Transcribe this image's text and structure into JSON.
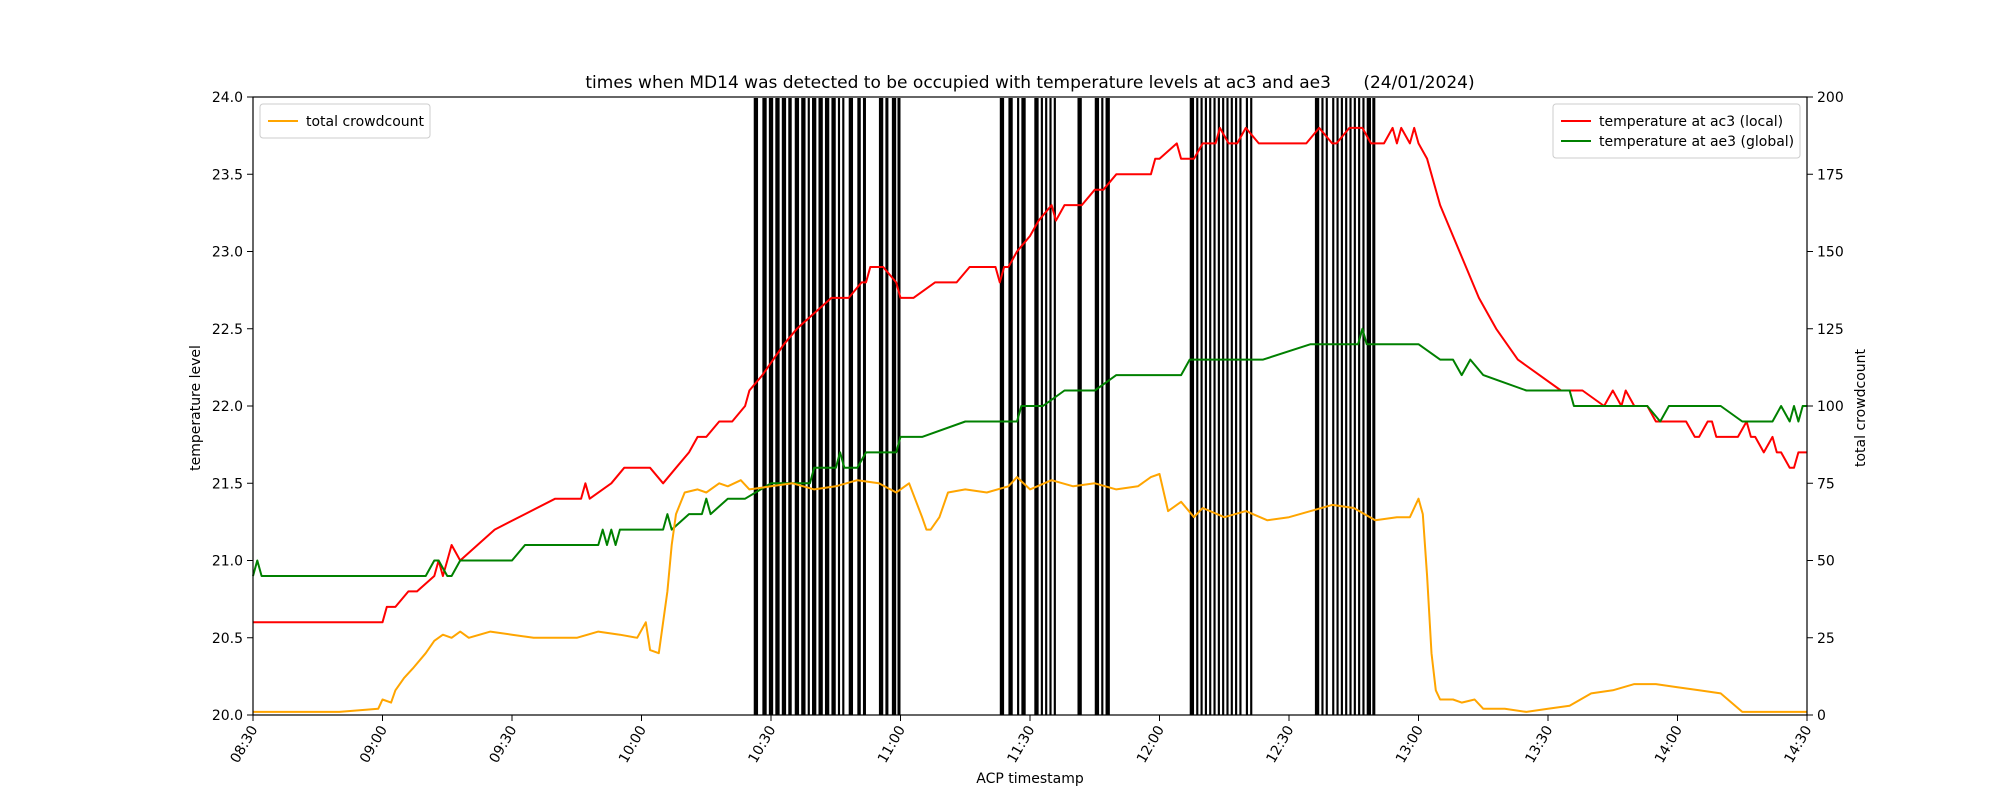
{
  "chart_data": {
    "type": "line",
    "title": "times when MD14 was detected to be occupied with temperature levels at ac3 and ae3      (24/01/2024)",
    "xlabel": "ACP timestamp",
    "ylabel": "temperature level",
    "ylabel_right": "total crowdcount",
    "xlim": [
      "08:30",
      "14:30"
    ],
    "ylim": [
      20.0,
      24.0
    ],
    "ylim_right": [
      0,
      200
    ],
    "x_ticks": [
      "08:30",
      "09:00",
      "09:30",
      "10:00",
      "10:30",
      "11:00",
      "11:30",
      "12:00",
      "12:30",
      "13:00",
      "13:30",
      "14:00",
      "14:30"
    ],
    "y_ticks": [
      "20.0",
      "20.5",
      "21.0",
      "21.5",
      "22.0",
      "22.5",
      "23.0",
      "23.5",
      "24.0"
    ],
    "y_ticks_right": [
      "0",
      "25",
      "50",
      "75",
      "100",
      "125",
      "150",
      "175",
      "200"
    ],
    "grid": false,
    "legend_left": {
      "placement": "upper-left",
      "entries": [
        "total crowdcount"
      ]
    },
    "legend_right": {
      "placement": "upper-right",
      "entries": [
        "temperature at ac3 (local)",
        "temperature at ae3 (global)"
      ]
    },
    "series": [
      {
        "name": "temperature at ac3 (local)",
        "color": "#ff0000",
        "axis": "left",
        "x": [
          "08:30",
          "09:00",
          "09:01",
          "09:03",
          "09:06",
          "09:08",
          "09:12",
          "09:13",
          "09:14",
          "09:15",
          "09:16",
          "09:18",
          "09:22",
          "09:26",
          "09:33",
          "09:40",
          "09:46",
          "09:47",
          "09:48",
          "09:53",
          "09:56",
          "10:02",
          "10:05",
          "10:08",
          "10:11",
          "10:13",
          "10:15",
          "10:18",
          "10:21",
          "10:24",
          "10:25",
          "10:28",
          "10:33",
          "10:36",
          "10:40",
          "10:44",
          "10:48",
          "10:51",
          "10:52",
          "10:53",
          "10:56",
          "10:59",
          "11:00",
          "11:01",
          "11:03",
          "11:08",
          "11:13",
          "11:16",
          "11:22",
          "11:23",
          "11:24",
          "11:25",
          "11:27",
          "11:30",
          "11:32",
          "11:35",
          "11:36",
          "11:38",
          "11:42",
          "11:45",
          "11:47",
          "11:50",
          "11:51",
          "11:55",
          "11:57",
          "11:58",
          "11:59",
          "12:00",
          "12:04",
          "12:05",
          "12:08",
          "12:10",
          "12:13",
          "12:14",
          "12:16",
          "12:18",
          "12:20",
          "12:23",
          "12:25",
          "12:27",
          "12:30",
          "12:31",
          "12:34",
          "12:37",
          "12:40",
          "12:41",
          "12:44",
          "12:47",
          "12:49",
          "12:52",
          "12:54",
          "12:55",
          "12:56",
          "12:58",
          "12:59",
          "13:00",
          "13:02",
          "13:05",
          "13:08",
          "13:11",
          "13:14",
          "13:18",
          "13:23",
          "13:28",
          "13:33",
          "13:38",
          "13:43",
          "13:45",
          "13:47",
          "13:48",
          "13:50",
          "13:53",
          "13:55",
          "13:57",
          "13:59",
          "14:00",
          "14:02",
          "14:04",
          "14:05",
          "14:07",
          "14:08",
          "14:09",
          "14:12",
          "14:14",
          "14:16",
          "14:17",
          "14:18",
          "14:20",
          "14:22",
          "14:23",
          "14:24",
          "14:26",
          "14:27",
          "14:28",
          "14:30"
        ],
        "y": [
          20.6,
          20.6,
          20.7,
          20.7,
          20.8,
          20.8,
          20.9,
          21.0,
          20.9,
          21.0,
          21.1,
          21.0,
          21.1,
          21.2,
          21.3,
          21.4,
          21.4,
          21.5,
          21.4,
          21.5,
          21.6,
          21.6,
          21.5,
          21.6,
          21.7,
          21.8,
          21.8,
          21.9,
          21.9,
          22.0,
          22.1,
          22.2,
          22.4,
          22.5,
          22.6,
          22.7,
          22.7,
          22.8,
          22.8,
          22.9,
          22.9,
          22.8,
          22.7,
          22.7,
          22.7,
          22.8,
          22.8,
          22.9,
          22.9,
          22.8,
          22.9,
          22.9,
          23.0,
          23.1,
          23.2,
          23.3,
          23.2,
          23.3,
          23.3,
          23.4,
          23.4,
          23.5,
          23.5,
          23.5,
          23.5,
          23.5,
          23.6,
          23.6,
          23.7,
          23.6,
          23.6,
          23.7,
          23.7,
          23.8,
          23.7,
          23.7,
          23.8,
          23.7,
          23.7,
          23.7,
          23.7,
          23.7,
          23.7,
          23.8,
          23.7,
          23.7,
          23.8,
          23.8,
          23.7,
          23.7,
          23.8,
          23.7,
          23.8,
          23.7,
          23.8,
          23.7,
          23.6,
          23.3,
          23.1,
          22.9,
          22.7,
          22.5,
          22.3,
          22.2,
          22.1,
          22.1,
          22.0,
          22.1,
          22.0,
          22.1,
          22.0,
          22.0,
          21.9,
          21.9,
          21.9,
          21.9,
          21.9,
          21.8,
          21.8,
          21.9,
          21.9,
          21.8,
          21.8,
          21.8,
          21.9,
          21.8,
          21.8,
          21.7,
          21.8,
          21.7,
          21.7,
          21.6,
          21.6,
          21.7,
          21.7
        ]
      },
      {
        "name": "temperature at ae3 (global)",
        "color": "#008000",
        "axis": "left",
        "x": [
          "08:30",
          "08:31",
          "08:32",
          "09:10",
          "09:12",
          "09:13",
          "09:15",
          "09:16",
          "09:18",
          "09:20",
          "09:22",
          "09:30",
          "09:33",
          "09:36",
          "09:37",
          "09:40",
          "09:50",
          "09:51",
          "09:52",
          "09:53",
          "09:54",
          "09:55",
          "09:57",
          "10:05",
          "10:06",
          "10:07",
          "10:11",
          "10:13",
          "10:14",
          "10:15",
          "10:16",
          "10:20",
          "10:24",
          "10:30",
          "10:31",
          "10:39",
          "10:40",
          "10:45",
          "10:46",
          "10:47",
          "10:50",
          "10:52",
          "10:53",
          "10:55",
          "10:58",
          "10:59",
          "11:00",
          "11:05",
          "11:15",
          "11:16",
          "11:17",
          "11:27",
          "11:28",
          "11:29",
          "11:30",
          "11:33",
          "11:38",
          "11:45",
          "11:50",
          "11:52",
          "12:00",
          "12:05",
          "12:07",
          "12:08",
          "12:10",
          "12:15",
          "12:24",
          "12:35",
          "12:36",
          "12:38",
          "12:40",
          "12:46",
          "12:47",
          "12:48",
          "13:00",
          "13:05",
          "13:08",
          "13:10",
          "13:12",
          "13:15",
          "13:25",
          "13:30",
          "13:35",
          "13:36",
          "13:38",
          "13:42",
          "13:44",
          "13:50",
          "13:53",
          "13:56",
          "13:58",
          "14:00",
          "14:02",
          "14:05",
          "14:10",
          "14:15",
          "14:22",
          "14:24",
          "14:26",
          "14:27",
          "14:28",
          "14:29",
          "14:30"
        ],
        "y": [
          20.9,
          21.0,
          20.9,
          20.9,
          21.0,
          21.0,
          20.9,
          20.9,
          21.0,
          21.0,
          21.0,
          21.0,
          21.1,
          21.1,
          21.1,
          21.1,
          21.1,
          21.2,
          21.1,
          21.2,
          21.1,
          21.2,
          21.2,
          21.2,
          21.3,
          21.2,
          21.3,
          21.3,
          21.3,
          21.4,
          21.3,
          21.4,
          21.4,
          21.5,
          21.5,
          21.5,
          21.6,
          21.6,
          21.7,
          21.6,
          21.6,
          21.7,
          21.7,
          21.7,
          21.7,
          21.7,
          21.8,
          21.8,
          21.9,
          21.9,
          21.9,
          21.9,
          22.0,
          22.0,
          22.0,
          22.0,
          22.1,
          22.1,
          22.2,
          22.2,
          22.2,
          22.2,
          22.3,
          22.3,
          22.3,
          22.3,
          22.3,
          22.4,
          22.4,
          22.4,
          22.4,
          22.4,
          22.5,
          22.4,
          22.4,
          22.3,
          22.3,
          22.2,
          22.3,
          22.2,
          22.1,
          22.1,
          22.1,
          22.0,
          22.0,
          22.0,
          22.0,
          22.0,
          22.0,
          21.9,
          22.0,
          22.0,
          22.0,
          22.0,
          22.0,
          21.9,
          21.9,
          22.0,
          21.9,
          22.0,
          21.9,
          22.0,
          22.0
        ]
      },
      {
        "name": "total crowdcount",
        "color": "#ffa500",
        "axis": "right",
        "x": [
          "08:30",
          "08:50",
          "08:59",
          "09:00",
          "09:02",
          "09:03",
          "09:05",
          "09:07",
          "09:10",
          "09:12",
          "09:14",
          "09:16",
          "09:18",
          "09:20",
          "09:25",
          "09:30",
          "09:35",
          "09:40",
          "09:45",
          "09:50",
          "09:55",
          "09:59",
          "10:01",
          "10:02",
          "10:04",
          "10:06",
          "10:07",
          "10:08",
          "10:10",
          "10:13",
          "10:15",
          "10:18",
          "10:20",
          "10:23",
          "10:25",
          "10:30",
          "10:35",
          "10:40",
          "10:45",
          "10:50",
          "10:55",
          "10:59",
          "11:02",
          "11:05",
          "11:06",
          "11:07",
          "11:09",
          "11:11",
          "11:15",
          "11:20",
          "11:25",
          "11:27",
          "11:30",
          "11:35",
          "11:40",
          "11:45",
          "11:50",
          "11:55",
          "11:58",
          "12:00",
          "12:02",
          "12:05",
          "12:08",
          "12:10",
          "12:15",
          "12:20",
          "12:25",
          "12:30",
          "12:35",
          "12:40",
          "12:45",
          "12:50",
          "12:55",
          "12:58",
          "13:00",
          "13:01",
          "13:02",
          "13:03",
          "13:04",
          "13:05",
          "13:08",
          "13:10",
          "13:13",
          "13:15",
          "13:20",
          "13:25",
          "13:30",
          "13:35",
          "13:40",
          "13:45",
          "13:50",
          "13:55",
          "14:00",
          "14:05",
          "14:10",
          "14:15",
          "14:20",
          "14:25",
          "14:30"
        ],
        "y": [
          1,
          1,
          2,
          5,
          4,
          8,
          12,
          15,
          20,
          24,
          26,
          25,
          27,
          25,
          27,
          26,
          25,
          25,
          25,
          27,
          26,
          25,
          30,
          21,
          20,
          40,
          55,
          65,
          72,
          73,
          72,
          75,
          74,
          76,
          73,
          74,
          75,
          73,
          74,
          76,
          75,
          72,
          75,
          64,
          60,
          60,
          64,
          72,
          73,
          72,
          74,
          77,
          73,
          76,
          74,
          75,
          73,
          74,
          77,
          78,
          66,
          69,
          64,
          67,
          64,
          66,
          63,
          64,
          66,
          68,
          67,
          63,
          64,
          64,
          70,
          65,
          45,
          20,
          8,
          5,
          5,
          4,
          5,
          2,
          2,
          1,
          2,
          3,
          7,
          8,
          10,
          10,
          9,
          8,
          7,
          1,
          1,
          1,
          1
        ]
      }
    ],
    "occupancy_intervals": [
      [
        "10:26",
        "10:27"
      ],
      [
        "10:28",
        "10:29"
      ],
      [
        "10:29.5",
        "10:30.5"
      ],
      [
        "10:31",
        "10:32"
      ],
      [
        "10:32.5",
        "10:33.5"
      ],
      [
        "10:34",
        "10:34.8"
      ],
      [
        "10:35.5",
        "10:36.5"
      ],
      [
        "10:37",
        "10:38"
      ],
      [
        "10:38.5",
        "10:39"
      ],
      [
        "10:39.5",
        "10:40.5"
      ],
      [
        "10:41",
        "10:42"
      ],
      [
        "10:42.5",
        "10:43.5"
      ],
      [
        "10:44",
        "10:45"
      ],
      [
        "10:45.5",
        "10:46"
      ],
      [
        "10:46.5",
        "10:47"
      ],
      [
        "10:48",
        "10:49"
      ],
      [
        "10:50",
        "10:50.8"
      ],
      [
        "10:51.3",
        "10:52"
      ],
      [
        "10:55",
        "10:56"
      ],
      [
        "10:56.5",
        "10:57.2"
      ],
      [
        "10:58",
        "10:59"
      ],
      [
        "10:59.3",
        "11:00"
      ],
      [
        "11:23",
        "11:24"
      ],
      [
        "11:25",
        "11:26"
      ],
      [
        "11:27",
        "11:27.5"
      ],
      [
        "11:28",
        "11:29"
      ],
      [
        "11:31",
        "11:32"
      ],
      [
        "11:32.5",
        "11:33"
      ],
      [
        "11:33.5",
        "11:34"
      ],
      [
        "11:34.5",
        "11:35"
      ],
      [
        "11:35.5",
        "11:36"
      ],
      [
        "11:41",
        "11:42"
      ],
      [
        "11:45",
        "11:46"
      ],
      [
        "11:46.5",
        "11:47"
      ],
      [
        "11:47.5",
        "11:48.5"
      ],
      [
        "12:07",
        "12:08"
      ],
      [
        "12:08.5",
        "12:09"
      ],
      [
        "12:09.5",
        "12:10"
      ],
      [
        "12:10.5",
        "12:11"
      ],
      [
        "12:11.5",
        "12:12"
      ],
      [
        "12:12.5",
        "12:13"
      ],
      [
        "12:13.5",
        "12:14"
      ],
      [
        "12:14.5",
        "12:15"
      ],
      [
        "12:15.5",
        "12:16"
      ],
      [
        "12:16.5",
        "12:17"
      ],
      [
        "12:17.5",
        "12:18"
      ],
      [
        "12:18.5",
        "12:19"
      ],
      [
        "12:20",
        "12:20.5"
      ],
      [
        "12:21",
        "12:21.5"
      ],
      [
        "12:36",
        "12:37"
      ],
      [
        "12:37.5",
        "12:38"
      ],
      [
        "12:38.5",
        "12:39"
      ],
      [
        "12:40",
        "12:40.5"
      ],
      [
        "12:41",
        "12:41.5"
      ],
      [
        "12:42",
        "12:42.5"
      ],
      [
        "12:43",
        "12:43.5"
      ],
      [
        "12:44",
        "12:44.5"
      ],
      [
        "12:45",
        "12:45.5"
      ],
      [
        "12:46",
        "12:46.5"
      ],
      [
        "12:47",
        "12:47.5"
      ],
      [
        "12:48",
        "12:49"
      ],
      [
        "12:49.3",
        "12:50"
      ]
    ]
  }
}
